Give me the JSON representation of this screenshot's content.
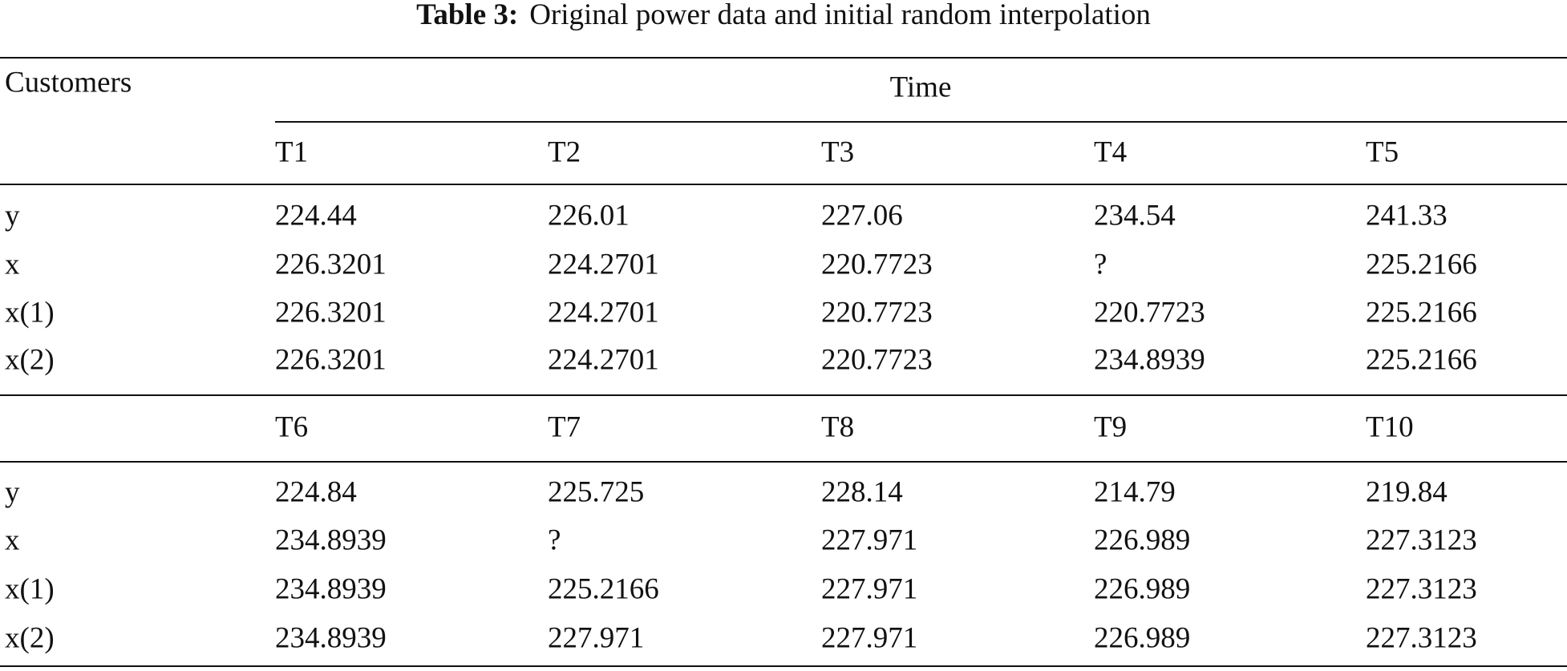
{
  "caption": {
    "label": "Table 3:",
    "text": "Original power data and initial random interpolation"
  },
  "table": {
    "row_header": "Customers",
    "column_group": "Time",
    "blocks": [
      {
        "columns": [
          "T1",
          "T2",
          "T3",
          "T4",
          "T5"
        ],
        "rows": [
          {
            "label": "y",
            "values": [
              "224.44",
              "226.01",
              "227.06",
              "234.54",
              "241.33"
            ]
          },
          {
            "label": "x",
            "values": [
              "226.3201",
              "224.2701",
              "220.7723",
              "?",
              "225.2166"
            ]
          },
          {
            "label": "x(1)",
            "values": [
              "226.3201",
              "224.2701",
              "220.7723",
              "220.7723",
              "225.2166"
            ]
          },
          {
            "label": "x(2)",
            "values": [
              "226.3201",
              "224.2701",
              "220.7723",
              "234.8939",
              "225.2166"
            ]
          }
        ]
      },
      {
        "columns": [
          "T6",
          "T7",
          "T8",
          "T9",
          "T10"
        ],
        "rows": [
          {
            "label": "y",
            "values": [
              "224.84",
              "225.725",
              "228.14",
              "214.79",
              "219.84"
            ]
          },
          {
            "label": "x",
            "values": [
              "234.8939",
              "?",
              "227.971",
              "226.989",
              "227.3123"
            ]
          },
          {
            "label": "x(1)",
            "values": [
              "234.8939",
              "225.2166",
              "227.971",
              "226.989",
              "227.3123"
            ]
          },
          {
            "label": "x(2)",
            "values": [
              "234.8939",
              "227.971",
              "227.971",
              "226.989",
              "227.3123"
            ]
          }
        ]
      }
    ]
  }
}
